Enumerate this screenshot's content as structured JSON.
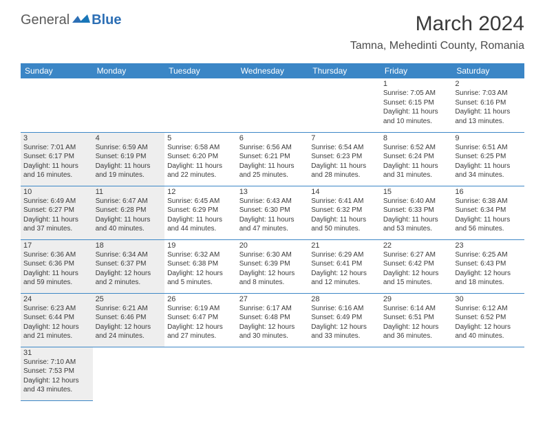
{
  "logo": {
    "general": "General",
    "blue": "Blue"
  },
  "title": "March 2024",
  "location": "Tamna, Mehedinti County, Romania",
  "header_bg": "#3b86c6",
  "header_text": "#ffffff",
  "cell_border": "#3b86c6",
  "shaded_bg": "#eeeeee",
  "day_names": [
    "Sunday",
    "Monday",
    "Tuesday",
    "Wednesday",
    "Thursday",
    "Friday",
    "Saturday"
  ],
  "weeks": [
    [
      null,
      null,
      null,
      null,
      null,
      {
        "n": "1",
        "sr": "Sunrise: 7:05 AM",
        "ss": "Sunset: 6:15 PM",
        "d1": "Daylight: 11 hours",
        "d2": "and 10 minutes."
      },
      {
        "n": "2",
        "sr": "Sunrise: 7:03 AM",
        "ss": "Sunset: 6:16 PM",
        "d1": "Daylight: 11 hours",
        "d2": "and 13 minutes."
      }
    ],
    [
      {
        "n": "3",
        "sr": "Sunrise: 7:01 AM",
        "ss": "Sunset: 6:17 PM",
        "d1": "Daylight: 11 hours",
        "d2": "and 16 minutes.",
        "shaded": true
      },
      {
        "n": "4",
        "sr": "Sunrise: 6:59 AM",
        "ss": "Sunset: 6:19 PM",
        "d1": "Daylight: 11 hours",
        "d2": "and 19 minutes.",
        "shaded": true
      },
      {
        "n": "5",
        "sr": "Sunrise: 6:58 AM",
        "ss": "Sunset: 6:20 PM",
        "d1": "Daylight: 11 hours",
        "d2": "and 22 minutes."
      },
      {
        "n": "6",
        "sr": "Sunrise: 6:56 AM",
        "ss": "Sunset: 6:21 PM",
        "d1": "Daylight: 11 hours",
        "d2": "and 25 minutes."
      },
      {
        "n": "7",
        "sr": "Sunrise: 6:54 AM",
        "ss": "Sunset: 6:23 PM",
        "d1": "Daylight: 11 hours",
        "d2": "and 28 minutes."
      },
      {
        "n": "8",
        "sr": "Sunrise: 6:52 AM",
        "ss": "Sunset: 6:24 PM",
        "d1": "Daylight: 11 hours",
        "d2": "and 31 minutes."
      },
      {
        "n": "9",
        "sr": "Sunrise: 6:51 AM",
        "ss": "Sunset: 6:25 PM",
        "d1": "Daylight: 11 hours",
        "d2": "and 34 minutes."
      }
    ],
    [
      {
        "n": "10",
        "sr": "Sunrise: 6:49 AM",
        "ss": "Sunset: 6:27 PM",
        "d1": "Daylight: 11 hours",
        "d2": "and 37 minutes.",
        "shaded": true
      },
      {
        "n": "11",
        "sr": "Sunrise: 6:47 AM",
        "ss": "Sunset: 6:28 PM",
        "d1": "Daylight: 11 hours",
        "d2": "and 40 minutes.",
        "shaded": true
      },
      {
        "n": "12",
        "sr": "Sunrise: 6:45 AM",
        "ss": "Sunset: 6:29 PM",
        "d1": "Daylight: 11 hours",
        "d2": "and 44 minutes."
      },
      {
        "n": "13",
        "sr": "Sunrise: 6:43 AM",
        "ss": "Sunset: 6:30 PM",
        "d1": "Daylight: 11 hours",
        "d2": "and 47 minutes."
      },
      {
        "n": "14",
        "sr": "Sunrise: 6:41 AM",
        "ss": "Sunset: 6:32 PM",
        "d1": "Daylight: 11 hours",
        "d2": "and 50 minutes."
      },
      {
        "n": "15",
        "sr": "Sunrise: 6:40 AM",
        "ss": "Sunset: 6:33 PM",
        "d1": "Daylight: 11 hours",
        "d2": "and 53 minutes."
      },
      {
        "n": "16",
        "sr": "Sunrise: 6:38 AM",
        "ss": "Sunset: 6:34 PM",
        "d1": "Daylight: 11 hours",
        "d2": "and 56 minutes."
      }
    ],
    [
      {
        "n": "17",
        "sr": "Sunrise: 6:36 AM",
        "ss": "Sunset: 6:36 PM",
        "d1": "Daylight: 11 hours",
        "d2": "and 59 minutes.",
        "shaded": true
      },
      {
        "n": "18",
        "sr": "Sunrise: 6:34 AM",
        "ss": "Sunset: 6:37 PM",
        "d1": "Daylight: 12 hours",
        "d2": "and 2 minutes.",
        "shaded": true
      },
      {
        "n": "19",
        "sr": "Sunrise: 6:32 AM",
        "ss": "Sunset: 6:38 PM",
        "d1": "Daylight: 12 hours",
        "d2": "and 5 minutes."
      },
      {
        "n": "20",
        "sr": "Sunrise: 6:30 AM",
        "ss": "Sunset: 6:39 PM",
        "d1": "Daylight: 12 hours",
        "d2": "and 8 minutes."
      },
      {
        "n": "21",
        "sr": "Sunrise: 6:29 AM",
        "ss": "Sunset: 6:41 PM",
        "d1": "Daylight: 12 hours",
        "d2": "and 12 minutes."
      },
      {
        "n": "22",
        "sr": "Sunrise: 6:27 AM",
        "ss": "Sunset: 6:42 PM",
        "d1": "Daylight: 12 hours",
        "d2": "and 15 minutes."
      },
      {
        "n": "23",
        "sr": "Sunrise: 6:25 AM",
        "ss": "Sunset: 6:43 PM",
        "d1": "Daylight: 12 hours",
        "d2": "and 18 minutes."
      }
    ],
    [
      {
        "n": "24",
        "sr": "Sunrise: 6:23 AM",
        "ss": "Sunset: 6:44 PM",
        "d1": "Daylight: 12 hours",
        "d2": "and 21 minutes.",
        "shaded": true
      },
      {
        "n": "25",
        "sr": "Sunrise: 6:21 AM",
        "ss": "Sunset: 6:46 PM",
        "d1": "Daylight: 12 hours",
        "d2": "and 24 minutes.",
        "shaded": true
      },
      {
        "n": "26",
        "sr": "Sunrise: 6:19 AM",
        "ss": "Sunset: 6:47 PM",
        "d1": "Daylight: 12 hours",
        "d2": "and 27 minutes."
      },
      {
        "n": "27",
        "sr": "Sunrise: 6:17 AM",
        "ss": "Sunset: 6:48 PM",
        "d1": "Daylight: 12 hours",
        "d2": "and 30 minutes."
      },
      {
        "n": "28",
        "sr": "Sunrise: 6:16 AM",
        "ss": "Sunset: 6:49 PM",
        "d1": "Daylight: 12 hours",
        "d2": "and 33 minutes."
      },
      {
        "n": "29",
        "sr": "Sunrise: 6:14 AM",
        "ss": "Sunset: 6:51 PM",
        "d1": "Daylight: 12 hours",
        "d2": "and 36 minutes."
      },
      {
        "n": "30",
        "sr": "Sunrise: 6:12 AM",
        "ss": "Sunset: 6:52 PM",
        "d1": "Daylight: 12 hours",
        "d2": "and 40 minutes."
      }
    ],
    [
      {
        "n": "31",
        "sr": "Sunrise: 7:10 AM",
        "ss": "Sunset: 7:53 PM",
        "d1": "Daylight: 12 hours",
        "d2": "and 43 minutes.",
        "shaded": true
      },
      null,
      null,
      null,
      null,
      null,
      null
    ]
  ]
}
